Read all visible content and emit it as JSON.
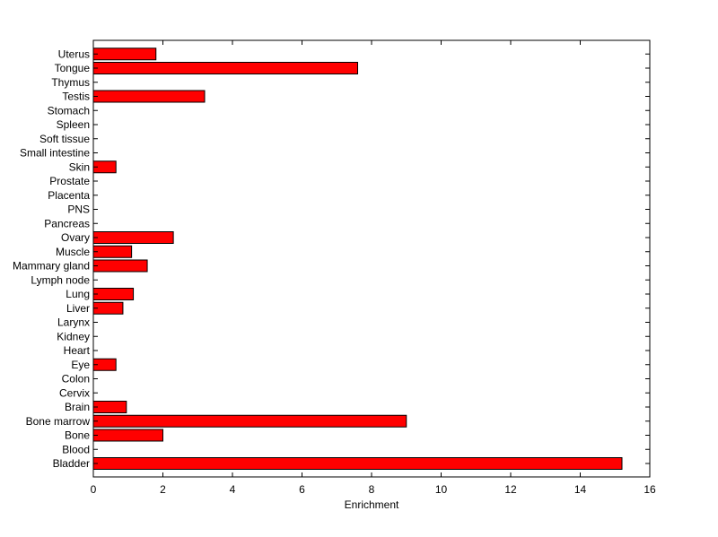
{
  "chart_data": {
    "type": "bar",
    "orientation": "horizontal",
    "title": "",
    "xlabel": "Enrichment",
    "ylabel": "",
    "xlim": [
      0,
      16
    ],
    "xticks": [
      0,
      2,
      4,
      6,
      8,
      10,
      12,
      14,
      16
    ],
    "grid": false,
    "legend": "none",
    "bar_color": "#ff0000",
    "edge_color": "#000000",
    "categories": [
      "Bladder",
      "Blood",
      "Bone",
      "Bone marrow",
      "Brain",
      "Cervix",
      "Colon",
      "Eye",
      "Heart",
      "Kidney",
      "Larynx",
      "Liver",
      "Lung",
      "Lymph node",
      "Mammary gland",
      "Muscle",
      "Ovary",
      "Pancreas",
      "PNS",
      "Placenta",
      "Prostate",
      "Skin",
      "Small intestine",
      "Soft tissue",
      "Spleen",
      "Stomach",
      "Testis",
      "Thymus",
      "Tongue",
      "Uterus"
    ],
    "values": [
      15.2,
      0,
      2.0,
      9.0,
      0.95,
      0,
      0,
      0.65,
      0,
      0,
      0,
      0.85,
      1.15,
      0,
      1.55,
      1.1,
      2.3,
      0,
      0,
      0,
      0,
      0.65,
      0,
      0,
      0,
      0,
      3.2,
      0,
      7.6,
      1.8
    ]
  }
}
